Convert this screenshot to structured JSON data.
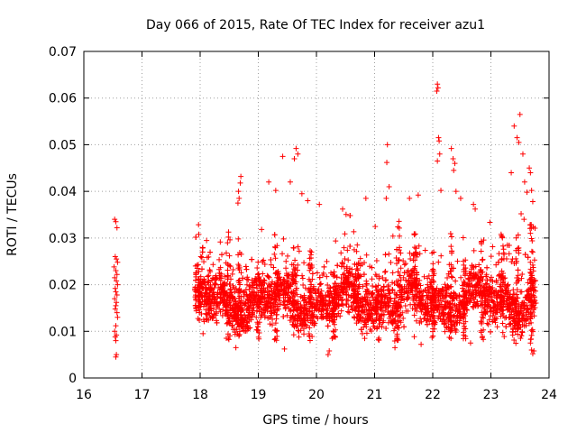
{
  "chart_data": {
    "type": "scatter",
    "title": "Day 066 of 2015, Rate Of TEC Index for receiver azu1",
    "xlabel": "GPS time / hours",
    "ylabel": "ROTI / TECUs",
    "xlim": [
      16,
      24
    ],
    "ylim": [
      0,
      0.07
    ],
    "xticks": [
      "16",
      "17",
      "18",
      "19",
      "20",
      "21",
      "22",
      "23",
      "24"
    ],
    "yticks": [
      "0",
      "0.01",
      "0.02",
      "0.03",
      "0.04",
      "0.05",
      "0.06",
      "0.07"
    ],
    "grid": true,
    "marker": "+",
    "color": "#ff0000",
    "series": [
      {
        "name": "azu1",
        "points": [
          [
            16.53,
            0.034
          ],
          [
            16.55,
            0.0335
          ],
          [
            16.57,
            0.0322
          ],
          [
            16.54,
            0.026
          ],
          [
            16.56,
            0.0255
          ],
          [
            16.58,
            0.0248
          ],
          [
            16.52,
            0.0238
          ],
          [
            16.55,
            0.023
          ],
          [
            16.57,
            0.0222
          ],
          [
            16.53,
            0.0215
          ],
          [
            16.56,
            0.0208
          ],
          [
            16.58,
            0.02
          ],
          [
            16.54,
            0.0192
          ],
          [
            16.55,
            0.0185
          ],
          [
            16.57,
            0.0178
          ],
          [
            16.53,
            0.017
          ],
          [
            16.56,
            0.0162
          ],
          [
            16.55,
            0.0155
          ],
          [
            16.54,
            0.0148
          ],
          [
            16.57,
            0.014
          ],
          [
            16.58,
            0.013
          ],
          [
            16.55,
            0.0112
          ],
          [
            16.53,
            0.01
          ],
          [
            16.56,
            0.0092
          ],
          [
            16.54,
            0.0088
          ],
          [
            16.55,
            0.008
          ],
          [
            16.56,
            0.005
          ],
          [
            16.55,
            0.0045
          ],
          [
            18.7,
            0.0432
          ],
          [
            18.69,
            0.0418
          ],
          [
            18.66,
            0.04
          ],
          [
            18.67,
            0.0385
          ],
          [
            18.65,
            0.0375
          ],
          [
            19.42,
            0.0475
          ],
          [
            19.65,
            0.0492
          ],
          [
            19.68,
            0.048
          ],
          [
            19.62,
            0.047
          ],
          [
            19.18,
            0.042
          ],
          [
            19.3,
            0.0402
          ],
          [
            19.55,
            0.042
          ],
          [
            19.75,
            0.0395
          ],
          [
            19.85,
            0.038
          ],
          [
            20.05,
            0.0372
          ],
          [
            20.45,
            0.0362
          ],
          [
            20.85,
            0.0385
          ],
          [
            21.2,
            0.0385
          ],
          [
            21.22,
            0.05
          ],
          [
            21.21,
            0.0462
          ],
          [
            21.25,
            0.041
          ],
          [
            21.6,
            0.0385
          ],
          [
            21.75,
            0.0392
          ],
          [
            22.08,
            0.063
          ],
          [
            22.09,
            0.0622
          ],
          [
            22.07,
            0.0615
          ],
          [
            22.1,
            0.0515
          ],
          [
            22.11,
            0.0508
          ],
          [
            22.12,
            0.048
          ],
          [
            22.08,
            0.0465
          ],
          [
            22.14,
            0.0402
          ],
          [
            22.32,
            0.0492
          ],
          [
            22.35,
            0.047
          ],
          [
            22.38,
            0.046
          ],
          [
            22.36,
            0.0445
          ],
          [
            22.4,
            0.04
          ],
          [
            22.48,
            0.0385
          ],
          [
            22.7,
            0.0372
          ],
          [
            22.73,
            0.0362
          ],
          [
            23.35,
            0.044
          ],
          [
            23.4,
            0.054
          ],
          [
            23.45,
            0.0515
          ],
          [
            23.48,
            0.0505
          ],
          [
            23.5,
            0.0565
          ],
          [
            23.55,
            0.048
          ],
          [
            23.58,
            0.042
          ],
          [
            23.62,
            0.0398
          ],
          [
            23.66,
            0.045
          ],
          [
            23.68,
            0.044
          ],
          [
            23.7,
            0.0402
          ],
          [
            23.72,
            0.0378
          ],
          [
            23.52,
            0.0352
          ],
          [
            23.57,
            0.034
          ],
          [
            23.68,
            0.031
          ],
          [
            23.72,
            0.027
          ],
          [
            23.7,
            0.006
          ],
          [
            23.72,
            0.0052
          ],
          [
            23.74,
            0.0058
          ],
          [
            23.68,
            0.0075
          ],
          [
            20.2,
            0.005
          ],
          [
            20.22,
            0.0058
          ],
          [
            21.35,
            0.0065
          ],
          [
            21.8,
            0.0072
          ],
          [
            22.65,
            0.0075
          ],
          [
            19.45,
            0.0062
          ],
          [
            18.45,
            0.0085
          ],
          [
            18.05,
            0.0095
          ],
          [
            17.92,
            0.024
          ],
          [
            17.95,
            0.0235
          ],
          [
            17.93,
            0.0225
          ]
        ]
      }
    ]
  }
}
